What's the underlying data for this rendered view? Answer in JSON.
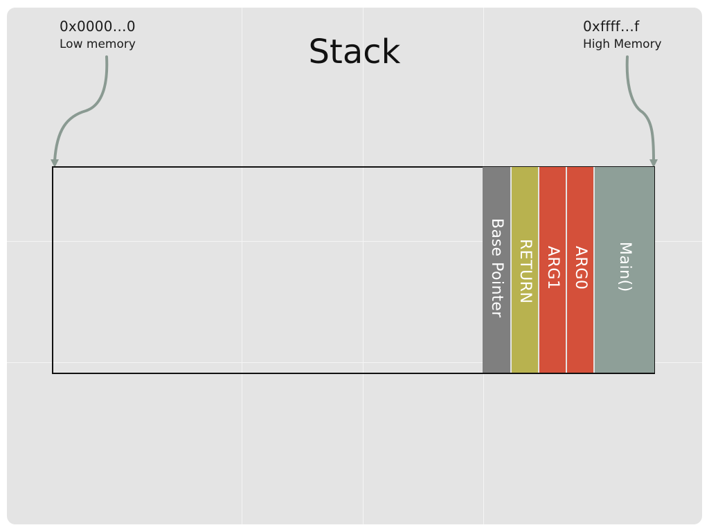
{
  "title": "Stack",
  "low_address": {
    "value": "0x0000…0",
    "label": "Low memory"
  },
  "high_address": {
    "value": "0xffff…f",
    "label": "High Memory"
  },
  "frames": [
    {
      "label": "Base Pointer",
      "color": "#7f7f7f"
    },
    {
      "label": "RETURN",
      "color": "#b8b24f"
    },
    {
      "label": "ARG1",
      "color": "#d4503a"
    },
    {
      "label": "ARG0",
      "color": "#d4503a"
    },
    {
      "label": "Main()",
      "color": "#8e9f98"
    }
  ],
  "colors": {
    "background": "#e4e4e4",
    "arrow": "#8a9a92",
    "outline": "#111111"
  }
}
